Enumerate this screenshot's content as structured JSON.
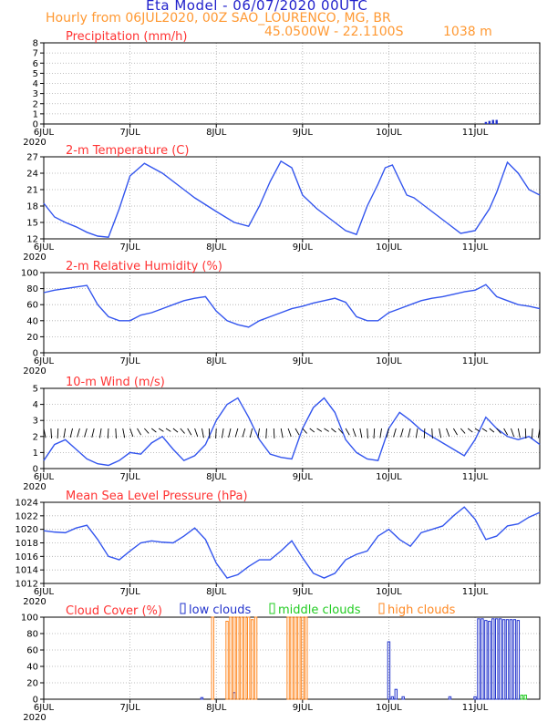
{
  "header": {
    "title": "Eta Model - 06/07/2020 00UTC",
    "subtitle": "Hourly from 06JUL2020, 00Z  SAO_LOURENCO, MG, BR",
    "coordinates": "45.0500W - 22.1100S",
    "elevation": "1038  m"
  },
  "colors": {
    "title": "#2222cc",
    "subtitle": "#ff9933",
    "panel_title": "#ff3333",
    "series_line": "#3355ee",
    "grid": "#aaaaaa",
    "low_clouds": "#2233cc",
    "middle_clouds": "#22cc22",
    "high_clouds": "#ff8822",
    "wind_barb": "#000000"
  },
  "x_ticks": [
    "6JUL",
    "7JUL",
    "8JUL",
    "9JUL",
    "10JUL",
    "11JUL"
  ],
  "x_year": "2020",
  "chart_data": [
    {
      "type": "bar",
      "title": "Precipitation (mm/h)",
      "ylim": [
        0,
        8
      ],
      "yticks": [
        "0",
        "1",
        "2",
        "3",
        "4",
        "5",
        "6",
        "7",
        "8"
      ],
      "grid": true,
      "x": [
        123,
        124,
        125,
        126
      ],
      "values": [
        0.2,
        0.3,
        0.4,
        0.4
      ]
    },
    {
      "type": "line",
      "title": "2-m Temperature (C)",
      "ylim": [
        12,
        27
      ],
      "yticks": [
        "12",
        "15",
        "18",
        "21",
        "24",
        "27"
      ],
      "grid": true,
      "x": [
        0,
        3,
        6,
        9,
        12,
        15,
        18,
        21,
        24,
        28,
        33,
        39,
        42,
        48,
        53,
        57,
        60,
        63,
        66,
        69,
        72,
        76,
        80,
        84,
        87,
        90,
        93,
        95,
        97,
        101,
        103,
        105,
        108,
        112,
        116,
        120,
        124,
        126,
        129,
        132,
        135,
        138
      ],
      "values": [
        18.5,
        16,
        15,
        14.2,
        13.2,
        12.5,
        12.3,
        17.5,
        23.5,
        25.8,
        24,
        21,
        19.5,
        17,
        15,
        14.3,
        18,
        22.5,
        26.2,
        25,
        20,
        17.5,
        15.5,
        13.5,
        12.8,
        18,
        22,
        25,
        25.5,
        20,
        19.5,
        18.5,
        17,
        15,
        13,
        13.5,
        17.5,
        20.5,
        26,
        24,
        21,
        20
      ],
      "ylabel": "",
      "xlabel": ""
    },
    {
      "type": "line",
      "title": "2-m Relative Humidity (%)",
      "ylim": [
        0,
        100
      ],
      "yticks": [
        "0",
        "20",
        "40",
        "60",
        "80",
        "100"
      ],
      "grid": true,
      "x": [
        0,
        3,
        6,
        9,
        12,
        15,
        18,
        21,
        24,
        27,
        30,
        33,
        36,
        39,
        42,
        45,
        48,
        51,
        54,
        57,
        60,
        63,
        66,
        69,
        72,
        75,
        78,
        81,
        84,
        87,
        90,
        93,
        96,
        99,
        102,
        105,
        108,
        111,
        114,
        117,
        120,
        123,
        126,
        129,
        132,
        135,
        138
      ],
      "values": [
        75,
        78,
        80,
        82,
        84,
        60,
        45,
        40,
        40,
        47,
        50,
        55,
        60,
        65,
        68,
        70,
        52,
        40,
        35,
        32,
        40,
        45,
        50,
        55,
        58,
        62,
        65,
        68,
        63,
        45,
        40,
        40,
        50,
        55,
        60,
        65,
        68,
        70,
        73,
        76,
        78,
        85,
        70,
        65,
        60,
        58,
        55
      ],
      "ylabel": "",
      "xlabel": ""
    },
    {
      "type": "line",
      "title": "10-m Wind (m/s)",
      "ylim": [
        0,
        5
      ],
      "yticks": [
        "0",
        "1",
        "2",
        "3",
        "4",
        "5"
      ],
      "grid": true,
      "x": [
        0,
        3,
        6,
        9,
        12,
        15,
        18,
        21,
        24,
        27,
        30,
        33,
        36,
        39,
        42,
        45,
        48,
        51,
        54,
        57,
        60,
        63,
        66,
        69,
        72,
        75,
        78,
        81,
        84,
        87,
        90,
        93,
        96,
        99,
        102,
        105,
        108,
        111,
        114,
        117,
        120,
        123,
        126,
        129,
        132,
        135,
        138
      ],
      "values": [
        0.5,
        1.5,
        1.8,
        1.2,
        0.6,
        0.3,
        0.2,
        0.5,
        1.0,
        0.9,
        1.6,
        2.0,
        1.2,
        0.5,
        0.8,
        1.5,
        3.0,
        4.0,
        4.4,
        3.2,
        1.8,
        0.9,
        0.7,
        0.6,
        2.5,
        3.8,
        4.4,
        3.5,
        1.8,
        1.0,
        0.6,
        0.5,
        2.5,
        3.5,
        3.0,
        2.4,
        2.0,
        1.6,
        1.2,
        0.8,
        1.8,
        3.2,
        2.5,
        2.0,
        1.8,
        2.0,
        1.5
      ],
      "barbs_baseline": 2.5,
      "ylabel": "",
      "xlabel": ""
    },
    {
      "type": "line",
      "title": "Mean Sea Level Pressure (hPa)",
      "ylim": [
        1012,
        1024
      ],
      "yticks": [
        "1012",
        "1014",
        "1016",
        "1018",
        "1020",
        "1022",
        "1024"
      ],
      "grid": true,
      "x": [
        0,
        3,
        6,
        9,
        12,
        15,
        18,
        21,
        24,
        27,
        30,
        33,
        36,
        39,
        42,
        45,
        48,
        51,
        54,
        57,
        60,
        63,
        66,
        69,
        72,
        75,
        78,
        81,
        84,
        87,
        90,
        93,
        96,
        99,
        102,
        105,
        108,
        111,
        114,
        117,
        120,
        123,
        126,
        129,
        132,
        135,
        138
      ],
      "values": [
        1019.8,
        1019.6,
        1019.5,
        1020.2,
        1020.6,
        1018.5,
        1016,
        1015.5,
        1016.8,
        1018,
        1018.3,
        1018.1,
        1018,
        1019,
        1020.2,
        1018.5,
        1015,
        1012.8,
        1013.3,
        1014.5,
        1015.5,
        1015.5,
        1016.8,
        1018.3,
        1015.8,
        1013.5,
        1012.8,
        1013.5,
        1015.5,
        1016.3,
        1016.8,
        1019,
        1020,
        1018.5,
        1017.5,
        1019.5,
        1020,
        1020.5,
        1022,
        1023.3,
        1021.5,
        1018.5,
        1019,
        1020.5,
        1020.8,
        1021.8,
        1022.5
      ],
      "ylabel": "",
      "xlabel": ""
    },
    {
      "type": "bar",
      "title": "Cloud Cover (%)",
      "ylim": [
        0,
        100
      ],
      "yticks": [
        "0",
        "20",
        "40",
        "60",
        "80",
        "100"
      ],
      "grid": true,
      "legend": [
        "low clouds",
        "middle clouds",
        "high clouds"
      ],
      "legend_placement": "top",
      "series": [
        {
          "name": "low clouds",
          "x": [
            44,
            53,
            96,
            97,
            98,
            100,
            113,
            120,
            121,
            122,
            123,
            124,
            125,
            126,
            127,
            128,
            129,
            130,
            131,
            132
          ],
          "values": [
            2,
            8,
            70,
            3,
            12,
            3,
            3,
            3,
            98,
            98,
            96,
            95,
            98,
            98,
            98,
            97,
            97,
            97,
            97,
            96
          ]
        },
        {
          "name": "middle clouds",
          "x": [
            133,
            134
          ],
          "values": [
            5,
            5
          ]
        },
        {
          "name": "high clouds",
          "x": [
            47,
            51,
            52,
            53,
            54,
            55,
            56,
            57,
            58,
            59,
            68,
            69,
            70,
            71,
            72,
            73
          ],
          "values": [
            100,
            95,
            100,
            100,
            100,
            100,
            100,
            100,
            97,
            100,
            100,
            100,
            100,
            100,
            100,
            100
          ]
        }
      ]
    }
  ]
}
